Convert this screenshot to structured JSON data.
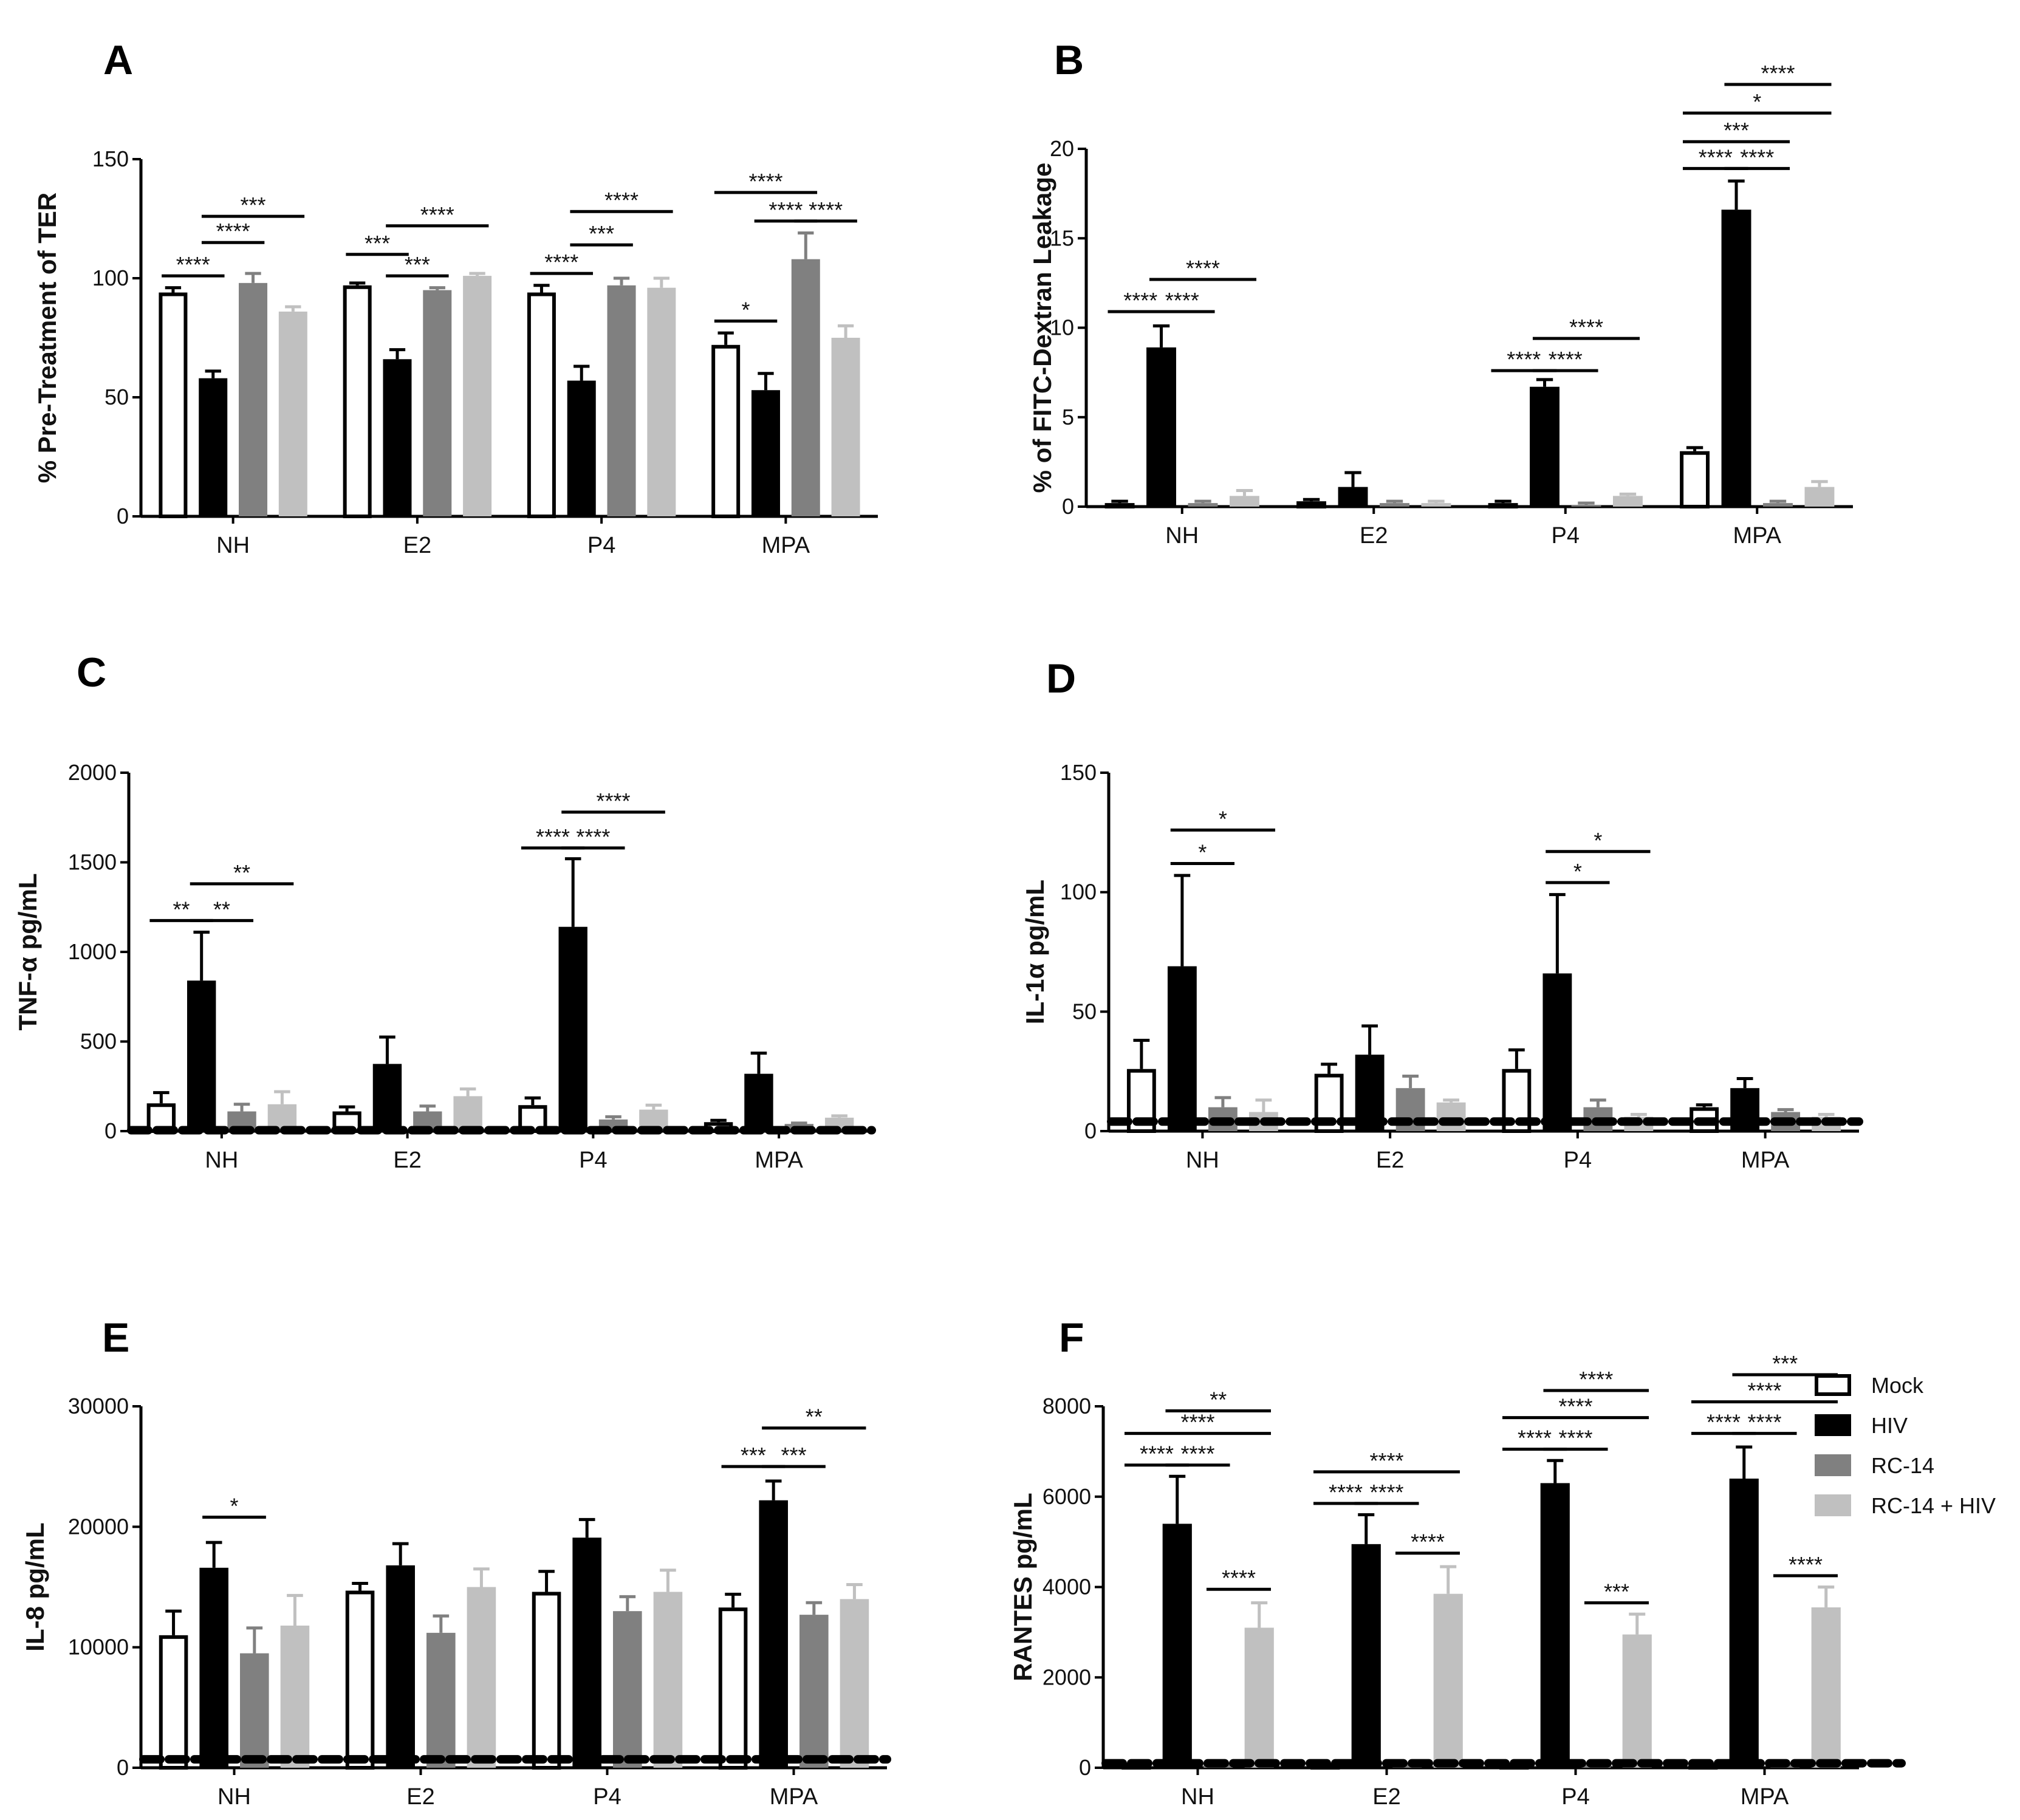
{
  "legend": {
    "items": [
      {
        "label": "Mock",
        "color": "#ffffff",
        "stroke": "#000000"
      },
      {
        "label": "HIV",
        "color": "#000000",
        "stroke": "#000000"
      },
      {
        "label": "RC-14",
        "color": "#808080",
        "stroke": "#808080"
      },
      {
        "label": "RC-14 + HIV",
        "color": "#c0c0c0",
        "stroke": "#c0c0c0"
      }
    ]
  },
  "chart_data": [
    {
      "panel": "A",
      "type": "bar",
      "ylabel": "% Pre-Treatment of TER",
      "categories": [
        "NH",
        "E2",
        "P4",
        "MPA"
      ],
      "ylim": [
        0,
        150
      ],
      "yticks": [
        0,
        50,
        100,
        150
      ],
      "series": [
        {
          "name": "Mock",
          "values": [
            94,
            97,
            94,
            72
          ],
          "errors": [
            2,
            1,
            3,
            5
          ]
        },
        {
          "name": "HIV",
          "values": [
            58,
            66,
            57,
            53
          ],
          "errors": [
            3,
            4,
            6,
            7
          ]
        },
        {
          "name": "RC-14",
          "values": [
            98,
            95,
            97,
            108
          ],
          "errors": [
            4,
            1,
            3,
            11
          ]
        },
        {
          "name": "RC-14 + HIV",
          "values": [
            86,
            101,
            96,
            75
          ],
          "errors": [
            2,
            1,
            4,
            5
          ]
        }
      ],
      "annotations": [
        {
          "text": "****",
          "cat": 0,
          "from": 0,
          "to": 1,
          "y": 101
        },
        {
          "text": "****",
          "cat": 0,
          "from": 1,
          "to": 2,
          "y": 115
        },
        {
          "text": "***",
          "cat": 0,
          "from": 1,
          "to": 3,
          "y": 126
        },
        {
          "text": "***",
          "cat": 1,
          "from": 0,
          "to": 1,
          "y": 110
        },
        {
          "text": "***",
          "cat": 1,
          "from": 1,
          "to": 2,
          "y": 101
        },
        {
          "text": "****",
          "cat": 1,
          "from": 1,
          "to": 3,
          "y": 122
        },
        {
          "text": "****",
          "cat": 2,
          "from": 0,
          "to": 1,
          "y": 102
        },
        {
          "text": "***",
          "cat": 2,
          "from": 1,
          "to": 2,
          "y": 114
        },
        {
          "text": "****",
          "cat": 2,
          "from": 1,
          "to": 3,
          "y": 128
        },
        {
          "text": "*",
          "cat": 3,
          "from": 0,
          "to": 1,
          "y": 82
        },
        {
          "text": "****",
          "cat": 3,
          "from": 1,
          "to": 2,
          "y": 124
        },
        {
          "text": "****",
          "cat": 3,
          "from": 2,
          "to": 3,
          "y": 124
        },
        {
          "text": "****",
          "cat": 3,
          "from": 0,
          "to": 2,
          "y": 136
        }
      ]
    },
    {
      "panel": "B",
      "type": "bar",
      "ylabel": "% of FITC-Dextran Leakage",
      "categories": [
        "NH",
        "E2",
        "P4",
        "MPA"
      ],
      "ylim": [
        0,
        20
      ],
      "yticks": [
        0,
        5,
        10,
        15,
        20
      ],
      "series": [
        {
          "name": "Mock",
          "values": [
            0.2,
            0.3,
            0.2,
            3.1
          ],
          "errors": [
            0.1,
            0.1,
            0.1,
            0.2
          ]
        },
        {
          "name": "HIV",
          "values": [
            8.9,
            1.1,
            6.7,
            16.6
          ],
          "errors": [
            1.2,
            0.8,
            0.4,
            1.6
          ]
        },
        {
          "name": "RC-14",
          "values": [
            0.2,
            0.2,
            0.1,
            0.2
          ],
          "errors": [
            0.1,
            0.1,
            0.1,
            0.1
          ]
        },
        {
          "name": "RC-14 + HIV",
          "values": [
            0.6,
            0.2,
            0.6,
            1.1
          ],
          "errors": [
            0.3,
            0.1,
            0.1,
            0.3
          ]
        }
      ],
      "annotations": [
        {
          "text": "****",
          "cat": 0,
          "from": 0,
          "to": 1,
          "y": 10.9
        },
        {
          "text": "****",
          "cat": 0,
          "from": 1,
          "to": 2,
          "y": 10.9
        },
        {
          "text": "****",
          "cat": 0,
          "from": 1,
          "to": 3,
          "y": 12.7
        },
        {
          "text": "****",
          "cat": 2,
          "from": 0,
          "to": 1,
          "y": 7.6
        },
        {
          "text": "****",
          "cat": 2,
          "from": 1,
          "to": 2,
          "y": 7.6
        },
        {
          "text": "****",
          "cat": 2,
          "from": 1,
          "to": 3,
          "y": 9.4
        },
        {
          "text": "****",
          "cat": 3,
          "from": 0,
          "to": 1,
          "y": 18.9
        },
        {
          "text": "****",
          "cat": 3,
          "from": 1,
          "to": 2,
          "y": 18.9
        },
        {
          "text": "***",
          "cat": 3,
          "from": 0,
          "to": 2,
          "y": 20.4
        },
        {
          "text": "*",
          "cat": 3,
          "from": 0,
          "to": 3,
          "y": 22.0
        },
        {
          "text": "****",
          "cat": 3,
          "from": 1,
          "to": 3,
          "y": 23.6
        }
      ]
    },
    {
      "panel": "C",
      "type": "bar",
      "ylabel": "TNF-α pg/mL",
      "categories": [
        "NH",
        "E2",
        "P4",
        "MPA"
      ],
      "ylim": [
        0,
        2000
      ],
      "yticks": [
        0,
        500,
        1000,
        1500,
        2000
      ],
      "dashed_level": 5,
      "series": [
        {
          "name": "Mock",
          "values": [
            155,
            110,
            145,
            50
          ],
          "errors": [
            60,
            25,
            40,
            10
          ]
        },
        {
          "name": "HIV",
          "values": [
            840,
            375,
            1140,
            320
          ],
          "errors": [
            270,
            150,
            380,
            115
          ]
        },
        {
          "name": "RC-14",
          "values": [
            110,
            110,
            65,
            40
          ],
          "errors": [
            40,
            30,
            15,
            5
          ]
        },
        {
          "name": "RC-14 + HIV",
          "values": [
            150,
            195,
            120,
            75
          ],
          "errors": [
            70,
            40,
            25,
            10
          ]
        }
      ],
      "annotations": [
        {
          "text": "**",
          "cat": 0,
          "from": 0,
          "to": 1,
          "y": 1175
        },
        {
          "text": "**",
          "cat": 0,
          "from": 1,
          "to": 2,
          "y": 1175
        },
        {
          "text": "**",
          "cat": 0,
          "from": 1,
          "to": 3,
          "y": 1380
        },
        {
          "text": "****",
          "cat": 2,
          "from": 0,
          "to": 1,
          "y": 1580
        },
        {
          "text": "****",
          "cat": 2,
          "from": 1,
          "to": 2,
          "y": 1580
        },
        {
          "text": "****",
          "cat": 2,
          "from": 1,
          "to": 3,
          "y": 1780
        }
      ]
    },
    {
      "panel": "D",
      "type": "bar",
      "ylabel": "IL-1α pg/mL",
      "categories": [
        "NH",
        "E2",
        "P4",
        "MPA"
      ],
      "ylim": [
        0,
        150
      ],
      "yticks": [
        0,
        50,
        100,
        150
      ],
      "dashed_level": 4,
      "series": [
        {
          "name": "Mock",
          "values": [
            26,
            24,
            26,
            10
          ],
          "errors": [
            12,
            4,
            8,
            1
          ]
        },
        {
          "name": "HIV",
          "values": [
            69,
            32,
            66,
            18
          ],
          "errors": [
            38,
            12,
            33,
            4
          ]
        },
        {
          "name": "RC-14",
          "values": [
            10,
            18,
            10,
            8
          ],
          "errors": [
            4,
            5,
            3,
            1
          ]
        },
        {
          "name": "RC-14 + HIV",
          "values": [
            8,
            12,
            6,
            6
          ],
          "errors": [
            5,
            1,
            1,
            1
          ]
        }
      ],
      "annotations": [
        {
          "text": "*",
          "cat": 0,
          "from": 1,
          "to": 2,
          "y": 112
        },
        {
          "text": "*",
          "cat": 0,
          "from": 1,
          "to": 3,
          "y": 126
        },
        {
          "text": "*",
          "cat": 2,
          "from": 1,
          "to": 2,
          "y": 104
        },
        {
          "text": "*",
          "cat": 2,
          "from": 1,
          "to": 3,
          "y": 117
        }
      ]
    },
    {
      "panel": "E",
      "type": "bar",
      "ylabel": "IL-8 pg/mL",
      "categories": [
        "NH",
        "E2",
        "P4",
        "MPA"
      ],
      "ylim": [
        0,
        30000
      ],
      "yticks": [
        0,
        10000,
        20000,
        30000
      ],
      "dashed_level": 700,
      "series": [
        {
          "name": "Mock",
          "values": [
            11000,
            14700,
            14600,
            13300
          ],
          "errors": [
            2000,
            600,
            1700,
            1100
          ]
        },
        {
          "name": "HIV",
          "values": [
            16600,
            16800,
            19100,
            22200
          ],
          "errors": [
            2100,
            1800,
            1500,
            1600
          ]
        },
        {
          "name": "RC-14",
          "values": [
            9500,
            11200,
            13000,
            12700
          ],
          "errors": [
            2100,
            1400,
            1200,
            1000
          ]
        },
        {
          "name": "RC-14 + HIV",
          "values": [
            11800,
            15000,
            14600,
            14000
          ],
          "errors": [
            2500,
            1500,
            1800,
            1200
          ]
        }
      ],
      "annotations": [
        {
          "text": "*",
          "cat": 0,
          "from": 1,
          "to": 2,
          "y": 20800
        },
        {
          "text": "***",
          "cat": 3,
          "from": 0,
          "to": 1,
          "y": 25000
        },
        {
          "text": "***",
          "cat": 3,
          "from": 1,
          "to": 2,
          "y": 25000
        },
        {
          "text": "**",
          "cat": 3,
          "from": 1,
          "to": 3,
          "y": 28200
        }
      ]
    },
    {
      "panel": "F",
      "type": "bar",
      "ylabel": "RANTES pg/mL",
      "categories": [
        "NH",
        "E2",
        "P4",
        "MPA"
      ],
      "ylim": [
        0,
        8000
      ],
      "yticks": [
        0,
        2000,
        4000,
        6000,
        8000
      ],
      "dashed_level": 100,
      "series": [
        {
          "name": "Mock",
          "values": [
            100,
            100,
            100,
            100
          ],
          "errors": [
            0,
            0,
            0,
            0
          ]
        },
        {
          "name": "HIV",
          "values": [
            5400,
            4950,
            6300,
            6400
          ],
          "errors": [
            1050,
            650,
            500,
            700
          ]
        },
        {
          "name": "RC-14",
          "values": [
            100,
            100,
            100,
            100
          ],
          "errors": [
            0,
            0,
            0,
            0
          ]
        },
        {
          "name": "RC-14 + HIV",
          "values": [
            3100,
            3850,
            2950,
            3550
          ],
          "errors": [
            550,
            600,
            450,
            450
          ]
        }
      ],
      "annotations": [
        {
          "text": "****",
          "cat": 0,
          "from": 0,
          "to": 1,
          "y": 6700
        },
        {
          "text": "****",
          "cat": 0,
          "from": 1,
          "to": 2,
          "y": 6700
        },
        {
          "text": "****",
          "cat": 0,
          "from": 0,
          "to": 3,
          "y": 7400
        },
        {
          "text": "**",
          "cat": 0,
          "from": 1,
          "to": 3,
          "y": 7900
        },
        {
          "text": "****",
          "cat": 0,
          "from": 2,
          "to": 3,
          "y": 3950
        },
        {
          "text": "****",
          "cat": 1,
          "from": 0,
          "to": 1,
          "y": 5850
        },
        {
          "text": "****",
          "cat": 1,
          "from": 1,
          "to": 2,
          "y": 5850
        },
        {
          "text": "****",
          "cat": 1,
          "from": 0,
          "to": 3,
          "y": 6550
        },
        {
          "text": "****",
          "cat": 1,
          "from": 2,
          "to": 3,
          "y": 4750
        },
        {
          "text": "****",
          "cat": 2,
          "from": 0,
          "to": 1,
          "y": 7050
        },
        {
          "text": "****",
          "cat": 2,
          "from": 1,
          "to": 2,
          "y": 7050
        },
        {
          "text": "****",
          "cat": 2,
          "from": 0,
          "to": 3,
          "y": 7750
        },
        {
          "text": "****",
          "cat": 2,
          "from": 1,
          "to": 3,
          "y": 8350
        },
        {
          "text": "***",
          "cat": 2,
          "from": 2,
          "to": 3,
          "y": 3650
        },
        {
          "text": "****",
          "cat": 3,
          "from": 0,
          "to": 1,
          "y": 7400
        },
        {
          "text": "****",
          "cat": 3,
          "from": 1,
          "to": 2,
          "y": 7400
        },
        {
          "text": "****",
          "cat": 3,
          "from": 0,
          "to": 3,
          "y": 8100
        },
        {
          "text": "***",
          "cat": 3,
          "from": 1,
          "to": 3,
          "y": 8700
        },
        {
          "text": "****",
          "cat": 3,
          "from": 2,
          "to": 3,
          "y": 4250
        }
      ]
    }
  ]
}
